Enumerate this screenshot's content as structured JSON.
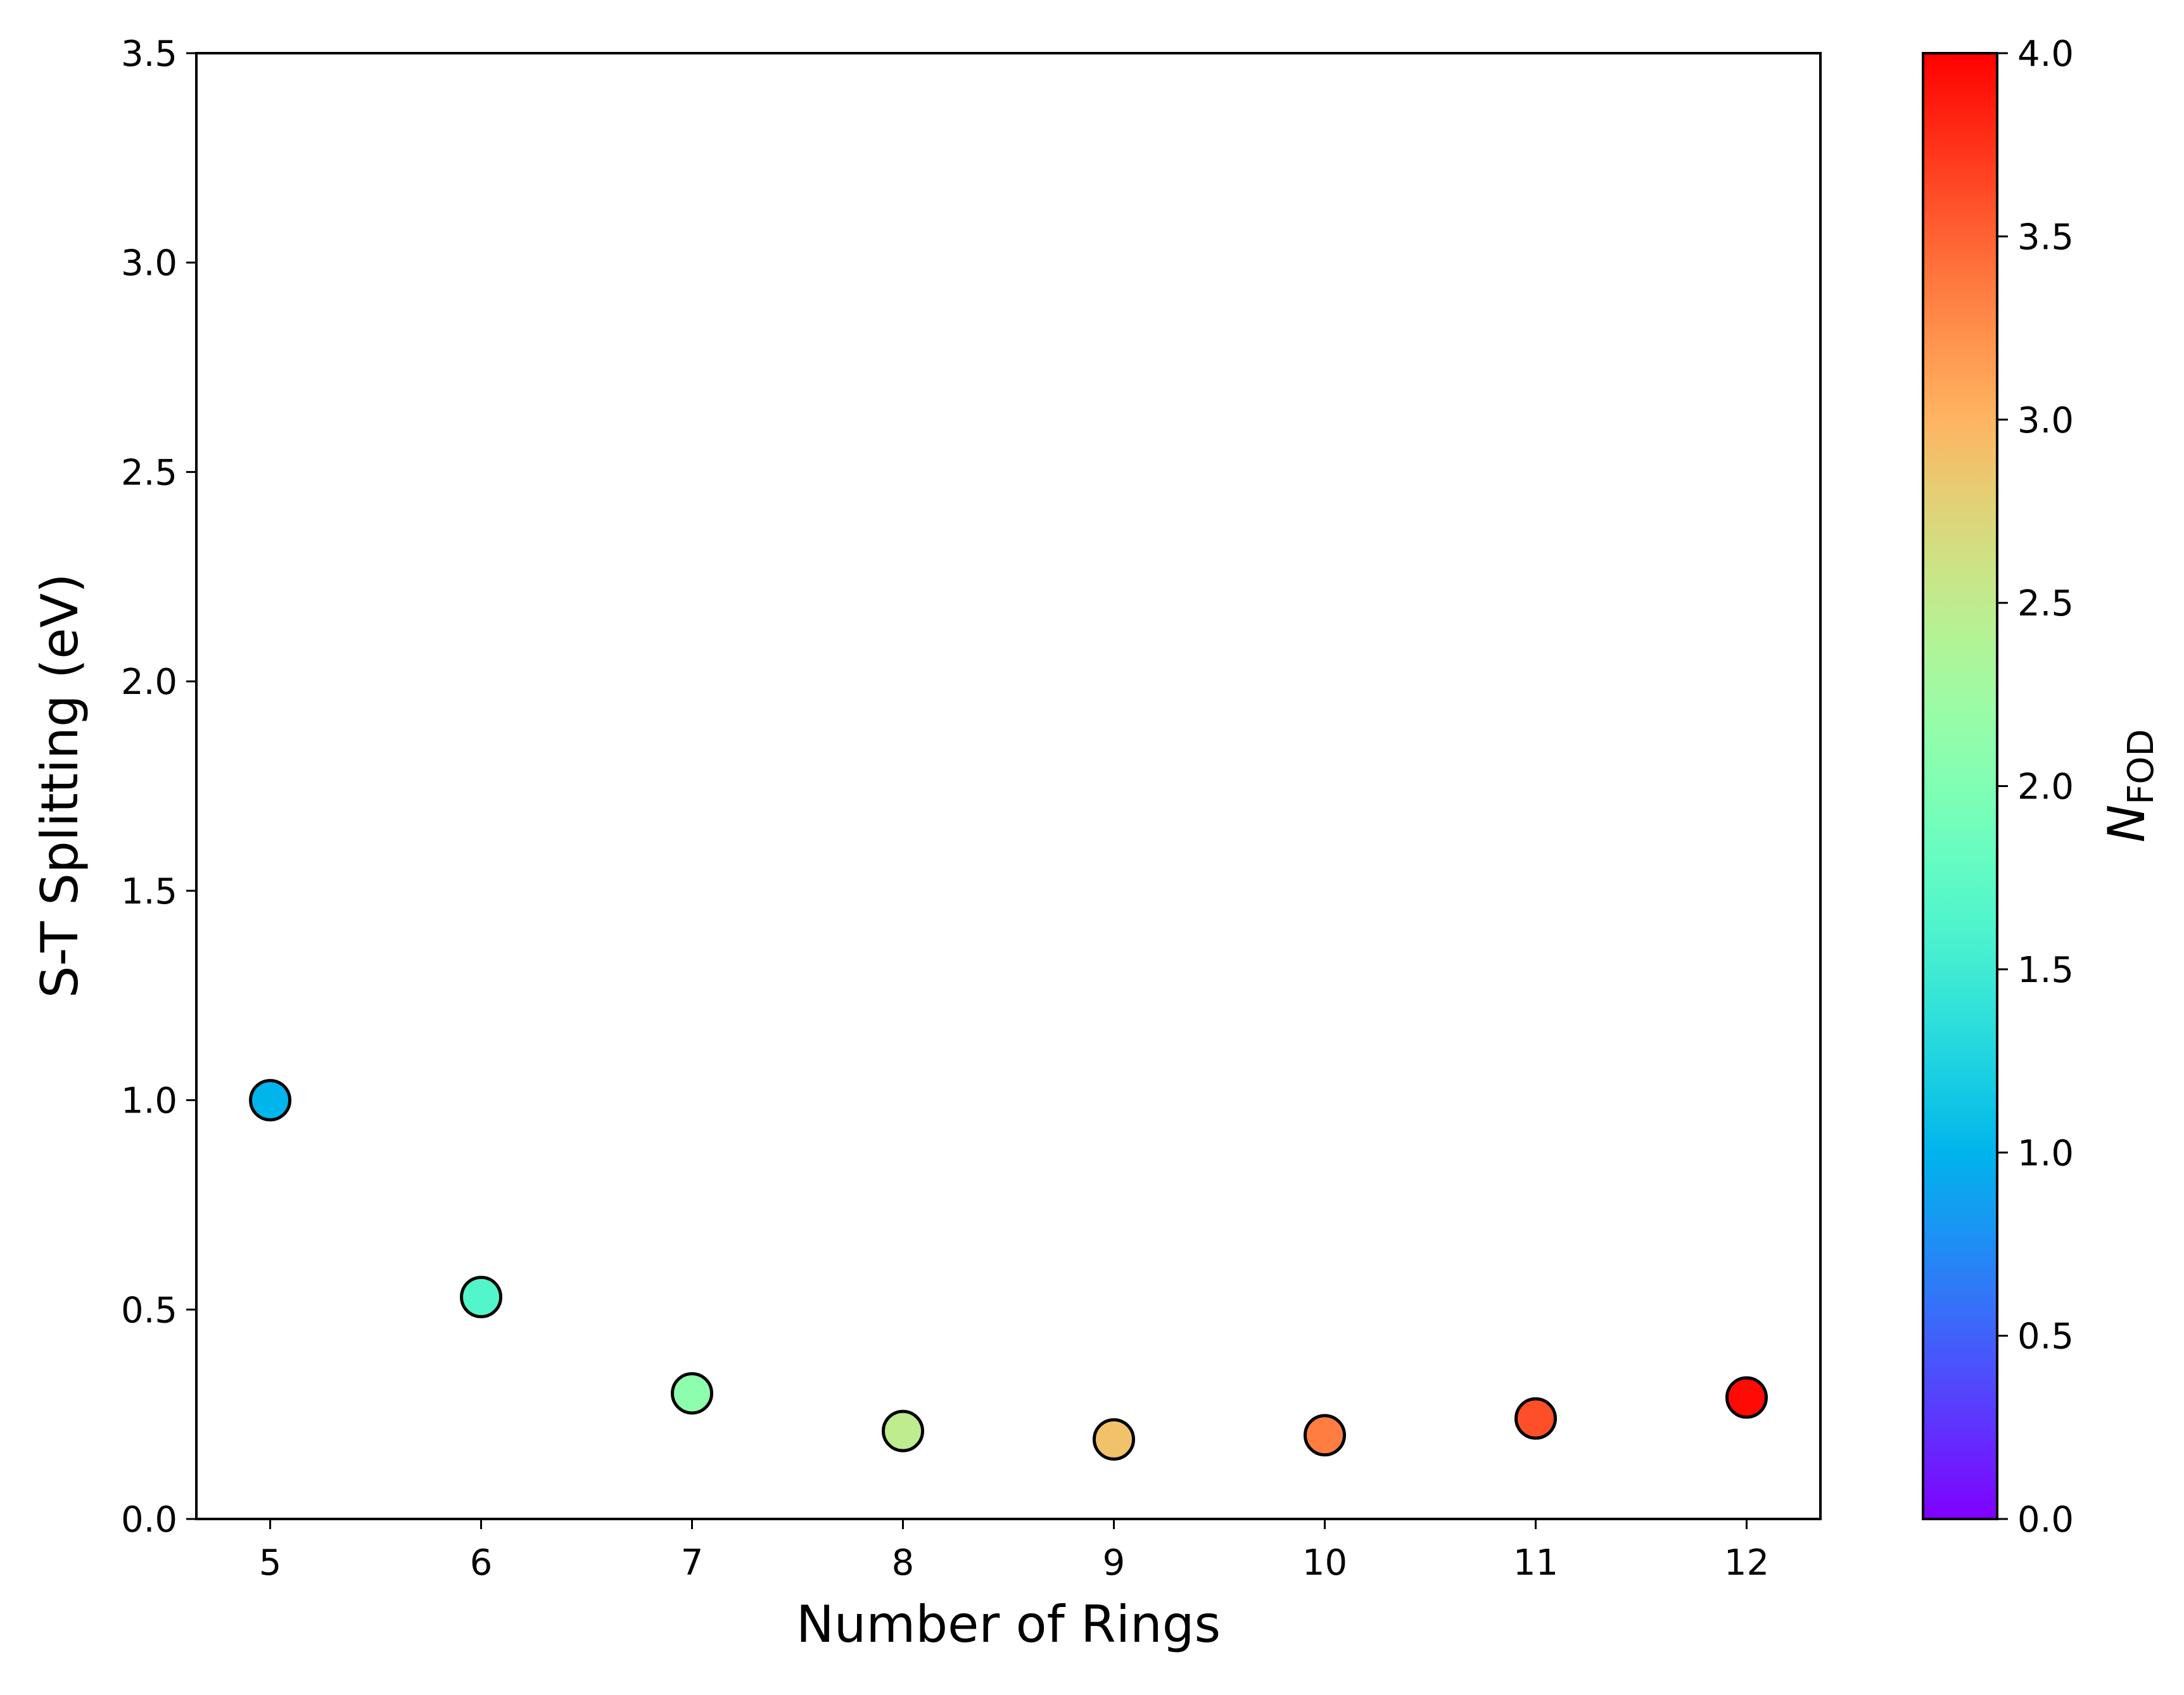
{
  "chart_data": {
    "type": "scatter",
    "title": "",
    "xlabel": "Number of Rings",
    "ylabel": "S-T Splitting (eV)",
    "x": [
      5,
      6,
      7,
      8,
      9,
      10,
      11,
      12
    ],
    "y": [
      1.0,
      0.53,
      0.3,
      0.21,
      0.19,
      0.2,
      0.24,
      0.29
    ],
    "color_values": [
      1.0,
      1.65,
      2.1,
      2.5,
      2.9,
      3.35,
      3.6,
      3.95
    ],
    "xlim": [
      4.65,
      12.35
    ],
    "ylim": [
      0.0,
      3.5
    ],
    "xticks": [
      "5",
      "6",
      "7",
      "8",
      "9",
      "10",
      "11",
      "12"
    ],
    "yticks": [
      "0.0",
      "0.5",
      "1.0",
      "1.5",
      "2.0",
      "2.5",
      "3.0",
      "3.5"
    ],
    "grid": false,
    "marker_edge_color": "#000000",
    "colorbar": {
      "colormap": "rainbow",
      "label_main": "N",
      "label_sub": "FOD",
      "range": [
        0.0,
        4.0
      ],
      "ticks": [
        "0.0",
        "0.5",
        "1.0",
        "1.5",
        "2.0",
        "2.5",
        "3.0",
        "3.5",
        "4.0"
      ],
      "position": "right"
    }
  }
}
